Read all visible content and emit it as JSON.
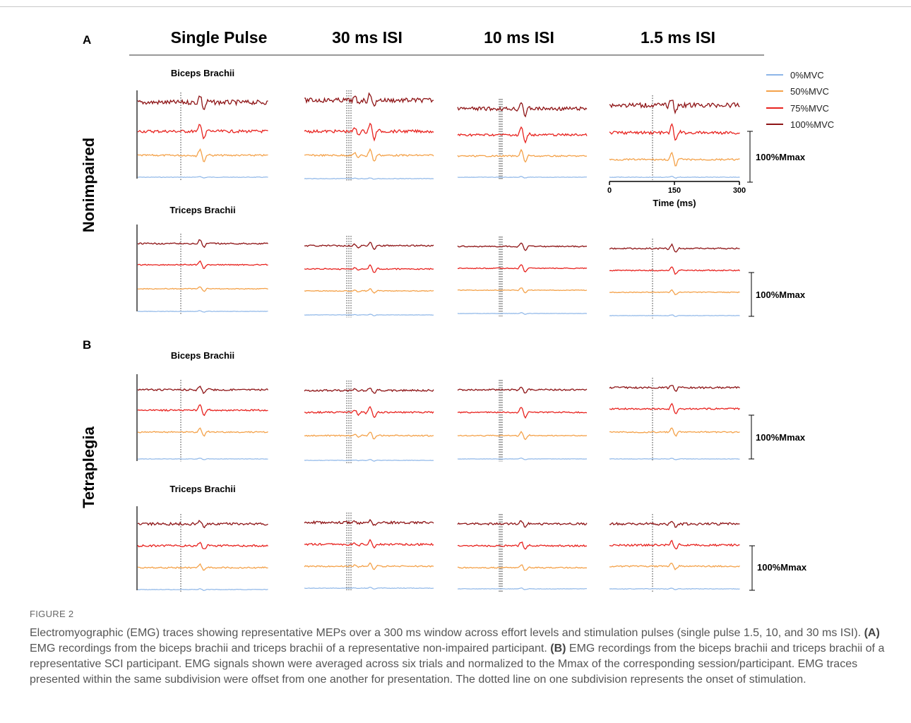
{
  "figure": {
    "panel_labels": {
      "a": "A",
      "b": "B"
    },
    "column_headers": [
      "Single Pulse",
      "30 ms ISI",
      "10 ms ISI",
      "1.5 ms ISI"
    ],
    "group_labels": {
      "a": "Nonimpaired",
      "b": "Tetraplegia"
    },
    "muscle_labels": [
      "Biceps Brachii",
      "Triceps Brachii",
      "Biceps Brachii",
      "Triceps Brachii"
    ],
    "scale_bar_label": "100%Mmax",
    "time_axis": {
      "label": "Time (ms)",
      "ticks": [
        "0",
        "150",
        "300"
      ]
    }
  },
  "chart_data": {
    "type": "line",
    "x_range_ms": [
      0,
      300
    ],
    "x_ticks": [
      0,
      150,
      300
    ],
    "xlabel": "Time (ms)",
    "scale_bar": "100%Mmax",
    "legend_position": "top-right",
    "columns": [
      "Single Pulse",
      "30 ms ISI",
      "10 ms ISI",
      "1.5 ms ISI"
    ],
    "series": [
      {
        "name": "0%MVC",
        "color": "#8db6e8"
      },
      {
        "name": "50%MVC",
        "color": "#f4a24a"
      },
      {
        "name": "75%MVC",
        "color": "#e8231f"
      },
      {
        "name": "100%MVC",
        "color": "#8e1416"
      }
    ],
    "subdivisions": [
      {
        "group": "Nonimpaired",
        "muscle": "Biceps Brachii"
      },
      {
        "group": "Nonimpaired",
        "muscle": "Triceps Brachii"
      },
      {
        "group": "Tetraplegia",
        "muscle": "Biceps Brachii"
      },
      {
        "group": "Tetraplegia",
        "muscle": "Triceps Brachii"
      }
    ]
  },
  "caption": {
    "label": "FIGURE 2",
    "text_1": "Electromyographic (EMG) traces showing representative MEPs over a 300 ms window across effort levels and stimulation pulses (single pulse 1.5, 10, and 30 ms ISI). ",
    "a_ref": "(A)",
    "text_2": " EMG recordings from the biceps brachii and triceps brachii of a representative non-impaired participant. ",
    "b_ref": "(B)",
    "text_3": " EMG recordings from the biceps brachii and triceps brachii of a representative SCI participant. EMG signals shown were averaged across six trials and normalized to the Mmax of the corresponding session/participant. EMG traces presented within the same subdivision were offset from one another for presentation. The dotted line on one subdivision represents the onset of stimulation."
  }
}
